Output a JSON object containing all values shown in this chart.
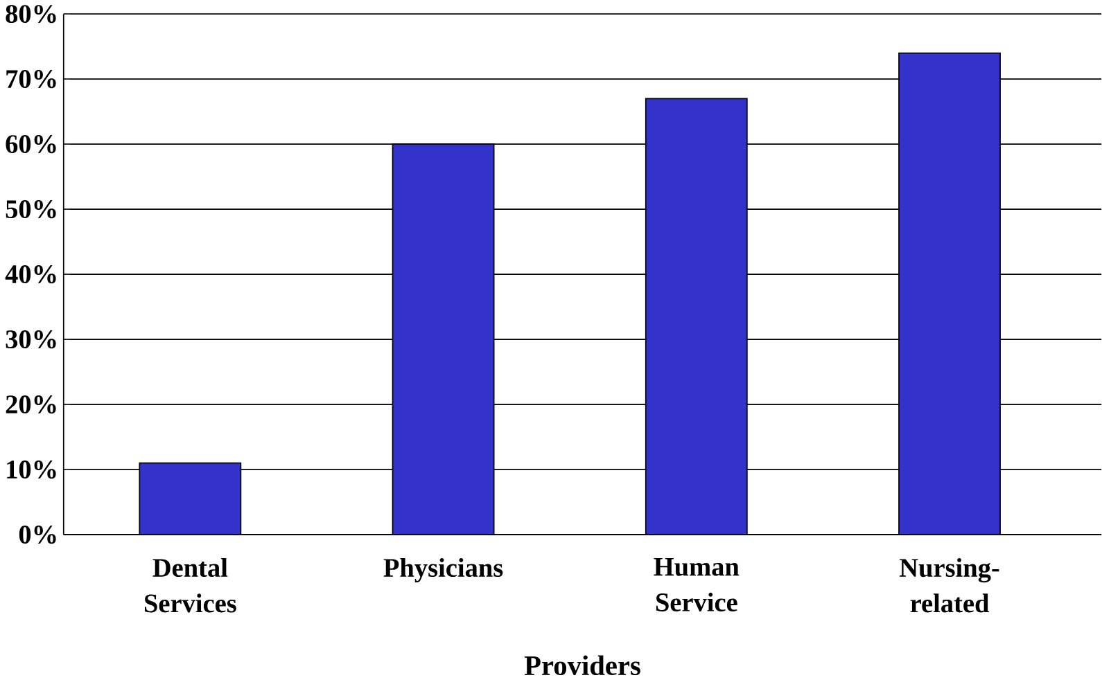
{
  "chart_data": {
    "type": "bar",
    "xlabel": "Providers",
    "categories": [
      "Dental Services",
      "Physicians",
      "Human Service",
      "Nursing-related"
    ],
    "values": [
      11,
      60,
      67,
      74
    ],
    "color": "#3333cc",
    "ylim": [
      0,
      80
    ],
    "yticks": [
      {
        "value": 0,
        "label": "0%"
      },
      {
        "value": 10,
        "label": "10%"
      },
      {
        "value": 20,
        "label": "20%"
      },
      {
        "value": 30,
        "label": "30%"
      },
      {
        "value": 40,
        "label": "40%"
      },
      {
        "value": 50,
        "label": "50%"
      },
      {
        "value": 60,
        "label": "60%"
      },
      {
        "value": 70,
        "label": "70%"
      },
      {
        "value": 80,
        "label": "80%"
      }
    ],
    "grid": "y"
  }
}
